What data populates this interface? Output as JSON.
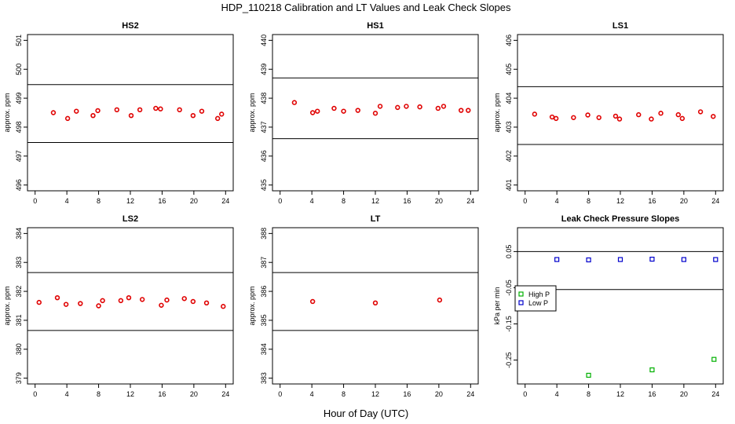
{
  "figure": {
    "title": "HDP_110218  Calibration and LT Values and Leak Check Slopes",
    "xlabel": "Hour of Day (UTC)"
  },
  "chart_data": [
    {
      "type": "scatter",
      "title": "HS2",
      "ylabel": "approx. ppm",
      "xlim": [
        0,
        24
      ],
      "ylim": [
        496,
        501
      ],
      "xticks": [
        0,
        4,
        8,
        12,
        16,
        20,
        24
      ],
      "yticks": [
        496,
        497,
        498,
        499,
        500,
        501
      ],
      "hlines": [
        499.47,
        497.47
      ],
      "marker_color": "#e00000",
      "x": [
        2.3,
        4.1,
        5.2,
        7.3,
        7.9,
        10.3,
        12.1,
        13.2,
        15.2,
        15.8,
        18.2,
        19.9,
        21.0,
        23.0,
        23.5
      ],
      "y": [
        498.5,
        498.3,
        498.55,
        498.4,
        498.57,
        498.6,
        498.4,
        498.6,
        498.65,
        498.63,
        498.6,
        498.4,
        498.55,
        498.3,
        498.45
      ]
    },
    {
      "type": "scatter",
      "title": "HS1",
      "ylabel": "approx. ppm",
      "xlim": [
        0,
        24
      ],
      "ylim": [
        435,
        440
      ],
      "xticks": [
        0,
        4,
        8,
        12,
        16,
        20,
        24
      ],
      "yticks": [
        435,
        436,
        437,
        438,
        439,
        440
      ],
      "hlines": [
        438.7,
        436.6
      ],
      "marker_color": "#e00000",
      "x": [
        1.8,
        4.1,
        4.7,
        6.8,
        8.0,
        9.8,
        12.0,
        12.6,
        14.8,
        15.9,
        17.6,
        19.9,
        20.6,
        22.8,
        23.7
      ],
      "y": [
        437.85,
        437.5,
        437.55,
        437.65,
        437.55,
        437.58,
        437.48,
        437.72,
        437.68,
        437.72,
        437.7,
        437.65,
        437.72,
        437.58,
        437.58
      ]
    },
    {
      "type": "scatter",
      "title": "LS1",
      "ylabel": "approx. ppm",
      "xlim": [
        0,
        24
      ],
      "ylim": [
        401,
        406
      ],
      "xticks": [
        0,
        4,
        8,
        12,
        16,
        20,
        24
      ],
      "yticks": [
        401,
        402,
        403,
        404,
        405,
        406
      ],
      "hlines": [
        404.4,
        402.4
      ],
      "marker_color": "#e00000",
      "x": [
        1.2,
        3.4,
        3.9,
        6.1,
        7.9,
        9.3,
        11.4,
        11.9,
        14.3,
        15.9,
        17.1,
        19.3,
        19.8,
        22.1,
        23.7
      ],
      "y": [
        403.45,
        403.35,
        403.3,
        403.33,
        403.42,
        403.33,
        403.38,
        403.28,
        403.43,
        403.28,
        403.48,
        403.43,
        403.3,
        403.53,
        403.37
      ]
    },
    {
      "type": "scatter",
      "title": "LS2",
      "ylabel": "approx. ppm",
      "xlim": [
        0,
        24
      ],
      "ylim": [
        379,
        384
      ],
      "xticks": [
        0,
        4,
        8,
        12,
        16,
        20,
        24
      ],
      "yticks": [
        379,
        380,
        381,
        382,
        383,
        384
      ],
      "hlines": [
        382.65,
        380.65
      ],
      "marker_color": "#e00000",
      "x": [
        0.5,
        2.8,
        3.9,
        5.7,
        8.0,
        8.5,
        10.8,
        11.8,
        13.5,
        15.9,
        16.6,
        18.8,
        19.9,
        21.6,
        23.7
      ],
      "y": [
        381.62,
        381.78,
        381.55,
        381.58,
        381.5,
        381.68,
        381.68,
        381.78,
        381.72,
        381.52,
        381.7,
        381.75,
        381.65,
        381.6,
        381.48
      ]
    },
    {
      "type": "scatter",
      "title": "LT",
      "ylabel": "approx. ppm",
      "xlim": [
        0,
        24
      ],
      "ylim": [
        383,
        388
      ],
      "xticks": [
        0,
        4,
        8,
        12,
        16,
        20,
        24
      ],
      "yticks": [
        383,
        384,
        385,
        386,
        387,
        388
      ],
      "hlines": [
        386.65,
        384.65
      ],
      "marker_color": "#e00000",
      "x": [
        4.1,
        12.0,
        20.1
      ],
      "y": [
        385.65,
        385.6,
        385.7
      ]
    },
    {
      "type": "scatter",
      "title": "Leak Check Pressure Slopes",
      "ylabel": "kPa per min",
      "xlim": [
        0,
        24
      ],
      "ylim": [
        -0.3,
        0.1
      ],
      "xticks": [
        0,
        4,
        8,
        12,
        16,
        20,
        24
      ],
      "yticks": [
        -0.25,
        -0.15,
        -0.05,
        0.05
      ],
      "ytick_labels": [
        "-0.25",
        "-0.15",
        "-0.05",
        "0.05"
      ],
      "hlines": [
        0.05,
        -0.055
      ],
      "legend": {
        "placement": "left",
        "entries": [
          {
            "label": "High P",
            "color": "#00b000"
          },
          {
            "label": "Low P",
            "color": "#0000cc"
          }
        ]
      },
      "series": [
        {
          "name": "High P",
          "color": "#00b000",
          "x": [
            8.0,
            16.0,
            23.8
          ],
          "y": [
            -0.292,
            -0.277,
            -0.248
          ]
        },
        {
          "name": "Low P",
          "color": "#0000cc",
          "x": [
            4.0,
            8.0,
            12.0,
            16.0,
            20.0,
            24.0
          ],
          "y": [
            0.028,
            0.027,
            0.028,
            0.029,
            0.028,
            0.028
          ]
        }
      ]
    }
  ]
}
